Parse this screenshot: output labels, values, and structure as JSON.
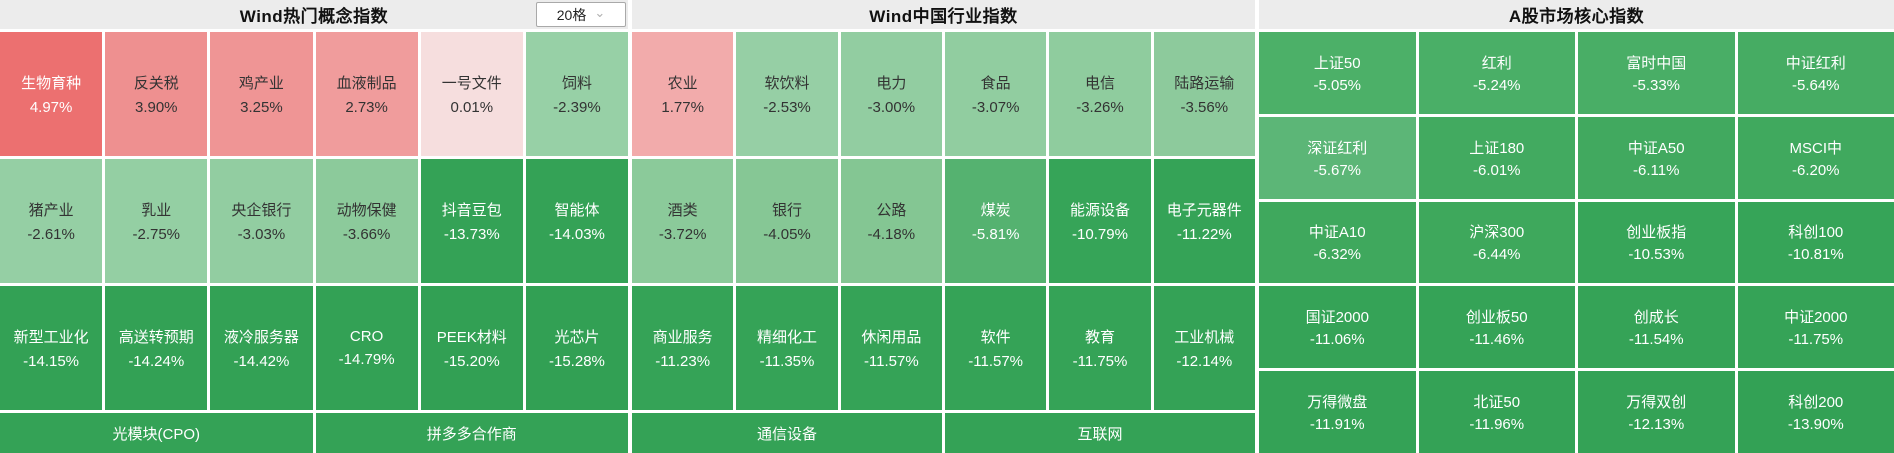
{
  "board": {
    "sections": [
      {
        "title": "Wind热门概念指数",
        "dropdown": {
          "value": "20格"
        },
        "rows": [
          [
            {
              "name": "生物育种",
              "pct": "4.97%",
              "bg": "#ec7070",
              "fg": "#ffffff"
            },
            {
              "name": "反关税",
              "pct": "3.90%",
              "bg": "#ee9090",
              "fg": "#333333"
            },
            {
              "name": "鸡产业",
              "pct": "3.25%",
              "bg": "#ef9595",
              "fg": "#333333"
            },
            {
              "name": "血液制品",
              "pct": "2.73%",
              "bg": "#f09c9c",
              "fg": "#333333"
            },
            {
              "name": "一号文件",
              "pct": "0.01%",
              "bg": "#f6dede",
              "fg": "#333333"
            },
            {
              "name": "饲料",
              "pct": "-2.39%",
              "bg": "#97d0a6",
              "fg": "#333333"
            }
          ],
          [
            {
              "name": "猪产业",
              "pct": "-2.61%",
              "bg": "#95cfa4",
              "fg": "#333333"
            },
            {
              "name": "乳业",
              "pct": "-2.75%",
              "bg": "#94cfa3",
              "fg": "#333333"
            },
            {
              "name": "央企银行",
              "pct": "-3.03%",
              "bg": "#92cda1",
              "fg": "#333333"
            },
            {
              "name": "动物保健",
              "pct": "-3.66%",
              "bg": "#8cca9b",
              "fg": "#333333"
            },
            {
              "name": "抖音豆包",
              "pct": "-13.73%",
              "bg": "#34a256",
              "fg": "#ffffff"
            },
            {
              "name": "智能体",
              "pct": "-14.03%",
              "bg": "#34a256",
              "fg": "#ffffff"
            }
          ],
          [
            {
              "name": "新型工业化",
              "pct": "-14.15%",
              "bg": "#33a155",
              "fg": "#ffffff"
            },
            {
              "name": "高送转预期",
              "pct": "-14.24%",
              "bg": "#33a155",
              "fg": "#ffffff"
            },
            {
              "name": "液冷服务器",
              "pct": "-14.42%",
              "bg": "#33a155",
              "fg": "#ffffff"
            },
            {
              "name": "CRO",
              "pct": "-14.79%",
              "bg": "#33a155",
              "fg": "#ffffff"
            },
            {
              "name": "PEEK材料",
              "pct": "-15.20%",
              "bg": "#32a054",
              "fg": "#ffffff"
            },
            {
              "name": "光芯片",
              "pct": "-15.28%",
              "bg": "#32a054",
              "fg": "#ffffff"
            }
          ]
        ],
        "groups": [
          {
            "label": "光模块(CPO)",
            "bg": "#34a256",
            "fg": "#ffffff"
          },
          {
            "label": "拼多多合作商",
            "bg": "#34a256",
            "fg": "#ffffff"
          }
        ]
      },
      {
        "title": "Wind中国行业指数",
        "rows": [
          [
            {
              "name": "农业",
              "pct": "1.77%",
              "bg": "#f2abab",
              "fg": "#333333"
            },
            {
              "name": "软饮料",
              "pct": "-2.53%",
              "bg": "#96cfa5",
              "fg": "#333333"
            },
            {
              "name": "电力",
              "pct": "-3.00%",
              "bg": "#92cda1",
              "fg": "#333333"
            },
            {
              "name": "食品",
              "pct": "-3.07%",
              "bg": "#91cda0",
              "fg": "#333333"
            },
            {
              "name": "电信",
              "pct": "-3.26%",
              "bg": "#8fcc9e",
              "fg": "#333333"
            },
            {
              "name": "陆路运输",
              "pct": "-3.56%",
              "bg": "#8dca9c",
              "fg": "#333333"
            }
          ],
          [
            {
              "name": "酒类",
              "pct": "-3.72%",
              "bg": "#8bca9a",
              "fg": "#333333"
            },
            {
              "name": "银行",
              "pct": "-4.05%",
              "bg": "#86c795",
              "fg": "#333333"
            },
            {
              "name": "公路",
              "pct": "-4.18%",
              "bg": "#84c693",
              "fg": "#333333"
            },
            {
              "name": "煤炭",
              "pct": "-5.81%",
              "bg": "#55b270",
              "fg": "#ffffff"
            },
            {
              "name": "能源设备",
              "pct": "-10.79%",
              "bg": "#36a458",
              "fg": "#ffffff"
            },
            {
              "name": "电子元器件",
              "pct": "-11.22%",
              "bg": "#35a357",
              "fg": "#ffffff"
            }
          ],
          [
            {
              "name": "商业服务",
              "pct": "-11.23%",
              "bg": "#35a357",
              "fg": "#ffffff"
            },
            {
              "name": "精细化工",
              "pct": "-11.35%",
              "bg": "#35a357",
              "fg": "#ffffff"
            },
            {
              "name": "休闲用品",
              "pct": "-11.57%",
              "bg": "#35a357",
              "fg": "#ffffff"
            },
            {
              "name": "软件",
              "pct": "-11.57%",
              "bg": "#35a357",
              "fg": "#ffffff"
            },
            {
              "name": "教育",
              "pct": "-11.75%",
              "bg": "#35a357",
              "fg": "#ffffff"
            },
            {
              "name": "工业机械",
              "pct": "-12.14%",
              "bg": "#34a256",
              "fg": "#ffffff"
            }
          ]
        ],
        "groups": [
          {
            "label": "通信设备",
            "bg": "#34a256",
            "fg": "#ffffff"
          },
          {
            "label": "互联网",
            "bg": "#34a256",
            "fg": "#ffffff"
          }
        ]
      },
      {
        "title": "A股市场核心指数",
        "rows": [
          [
            {
              "name": "上证50",
              "pct": "-5.05%",
              "bg": "#4cb068",
              "fg": "#ffffff"
            },
            {
              "name": "红利",
              "pct": "-5.24%",
              "bg": "#4aaf67",
              "fg": "#ffffff"
            },
            {
              "name": "富时中国",
              "pct": "-5.33%",
              "bg": "#49ae66",
              "fg": "#ffffff"
            },
            {
              "name": "中证红利",
              "pct": "-5.64%",
              "bg": "#46ac63",
              "fg": "#ffffff"
            }
          ],
          [
            {
              "name": "深证红利",
              "pct": "-5.67%",
              "bg": "#5cb677",
              "fg": "#ffffff"
            },
            {
              "name": "上证180",
              "pct": "-6.01%",
              "bg": "#42aa60",
              "fg": "#ffffff"
            },
            {
              "name": "中证A50",
              "pct": "-6.11%",
              "bg": "#41a95f",
              "fg": "#ffffff"
            },
            {
              "name": "MSCI中",
              "pct": "-6.20%",
              "bg": "#40a95e",
              "fg": "#ffffff"
            }
          ],
          [
            {
              "name": "中证A10",
              "pct": "-6.32%",
              "bg": "#3fa85d",
              "fg": "#ffffff"
            },
            {
              "name": "沪深300",
              "pct": "-6.44%",
              "bg": "#3ea85c",
              "fg": "#ffffff"
            },
            {
              "name": "创业板指",
              "pct": "-10.53%",
              "bg": "#37a559",
              "fg": "#ffffff"
            },
            {
              "name": "科创100",
              "pct": "-10.81%",
              "bg": "#36a458",
              "fg": "#ffffff"
            }
          ],
          [
            {
              "name": "国证2000",
              "pct": "-11.06%",
              "bg": "#35a357",
              "fg": "#ffffff"
            },
            {
              "name": "创业板50",
              "pct": "-11.46%",
              "bg": "#35a357",
              "fg": "#ffffff"
            },
            {
              "name": "创成长",
              "pct": "-11.54%",
              "bg": "#35a357",
              "fg": "#ffffff"
            },
            {
              "name": "中证2000",
              "pct": "-11.75%",
              "bg": "#35a357",
              "fg": "#ffffff"
            }
          ],
          [
            {
              "name": "万得微盘",
              "pct": "-11.91%",
              "bg": "#34a256",
              "fg": "#ffffff"
            },
            {
              "name": "北证50",
              "pct": "-11.96%",
              "bg": "#34a256",
              "fg": "#ffffff"
            },
            {
              "name": "万得双创",
              "pct": "-12.13%",
              "bg": "#34a256",
              "fg": "#ffffff"
            },
            {
              "name": "科创200",
              "pct": "-13.90%",
              "bg": "#33a155",
              "fg": "#ffffff"
            }
          ]
        ]
      }
    ]
  }
}
